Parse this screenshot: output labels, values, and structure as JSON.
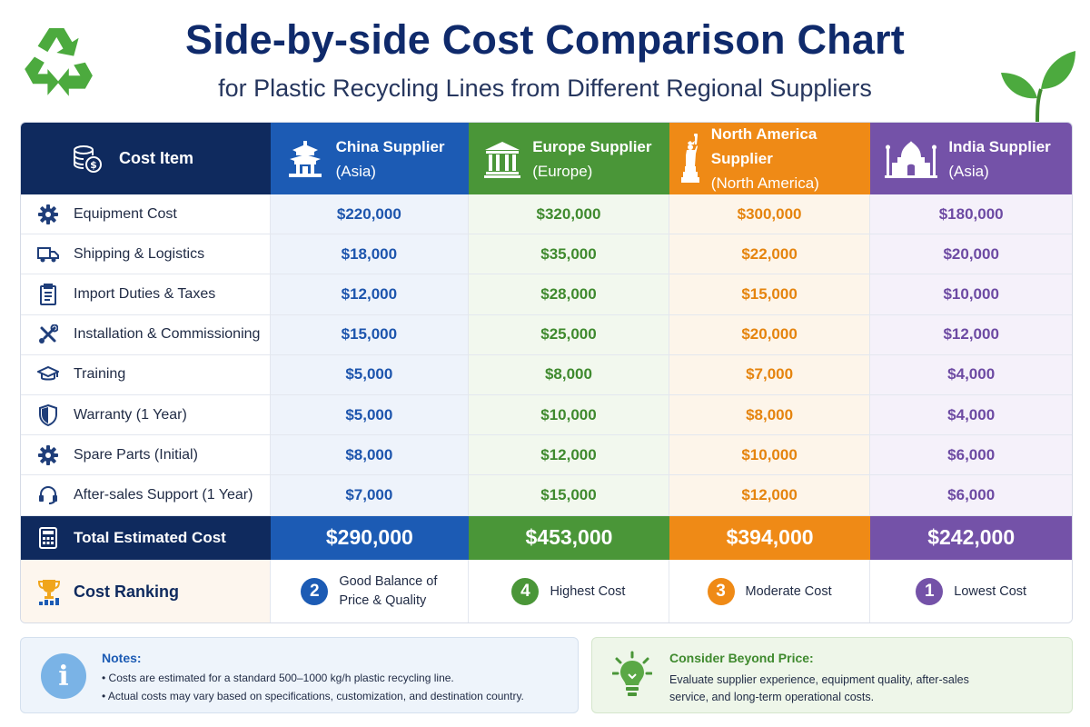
{
  "title": "Side-by-side Cost Comparison Chart",
  "subtitle": "for Plastic Recycling Lines from Different Regional Suppliers",
  "colors": {
    "navy": "#0f2a5e",
    "china": "#1c5bb4",
    "europe": "#4a9638",
    "north_america": "#ef8a16",
    "india": "#7452a8"
  },
  "chart_data": {
    "type": "table",
    "corner_header": "Cost Item",
    "suppliers": [
      {
        "name": "China Supplier",
        "region": "(Asia)",
        "icon": "pagoda-icon"
      },
      {
        "name": "Europe Supplier",
        "region": "(Europe)",
        "icon": "classical-building-icon"
      },
      {
        "name": "North America Supplier",
        "region": "(North America)",
        "icon": "statue-of-liberty-icon"
      },
      {
        "name": "India Supplier",
        "region": "(Asia)",
        "icon": "taj-mahal-icon"
      }
    ],
    "rows": [
      {
        "item": "Equipment Cost",
        "icon": "gear-icon",
        "values": [
          "$220,000",
          "$320,000",
          "$300,000",
          "$180,000"
        ]
      },
      {
        "item": "Shipping & Logistics",
        "icon": "truck-icon",
        "values": [
          "$18,000",
          "$35,000",
          "$22,000",
          "$20,000"
        ]
      },
      {
        "item": "Import Duties & Taxes",
        "icon": "clipboard-icon",
        "values": [
          "$12,000",
          "$28,000",
          "$15,000",
          "$10,000"
        ]
      },
      {
        "item": "Installation & Commissioning",
        "icon": "tools-icon",
        "values": [
          "$15,000",
          "$25,000",
          "$20,000",
          "$12,000"
        ]
      },
      {
        "item": "Training",
        "icon": "graduation-cap-icon",
        "values": [
          "$5,000",
          "$8,000",
          "$7,000",
          "$4,000"
        ]
      },
      {
        "item": "Warranty (1 Year)",
        "icon": "shield-icon",
        "values": [
          "$5,000",
          "$10,000",
          "$8,000",
          "$4,000"
        ]
      },
      {
        "item": "Spare Parts (Initial)",
        "icon": "gear-icon",
        "values": [
          "$8,000",
          "$12,000",
          "$10,000",
          "$6,000"
        ]
      },
      {
        "item": "After-sales Support (1 Year)",
        "icon": "headset-icon",
        "values": [
          "$7,000",
          "$15,000",
          "$12,000",
          "$6,000"
        ]
      }
    ],
    "total": {
      "label": "Total Estimated Cost",
      "icon": "calculator-icon",
      "values": [
        "$290,000",
        "$453,000",
        "$394,000",
        "$242,000"
      ]
    },
    "ranking": {
      "label": "Cost Ranking",
      "icon": "trophy-icon",
      "entries": [
        {
          "rank": "2",
          "text": "Good Balance of",
          "text2": "Price & Quality"
        },
        {
          "rank": "4",
          "text": "Highest Cost",
          "text2": ""
        },
        {
          "rank": "3",
          "text": "Moderate Cost",
          "text2": ""
        },
        {
          "rank": "1",
          "text": "Lowest Cost",
          "text2": ""
        }
      ]
    }
  },
  "notes": {
    "heading": "Notes:",
    "lines": [
      "• Costs are estimated for a standard 500–1000 kg/h plastic recycling line.",
      "• Actual costs may vary based on specifications, customization, and destination country."
    ]
  },
  "beyond": {
    "heading": "Consider Beyond Price:",
    "body": "Evaluate supplier experience, equipment quality, after-sales service, and long-term operational costs."
  }
}
